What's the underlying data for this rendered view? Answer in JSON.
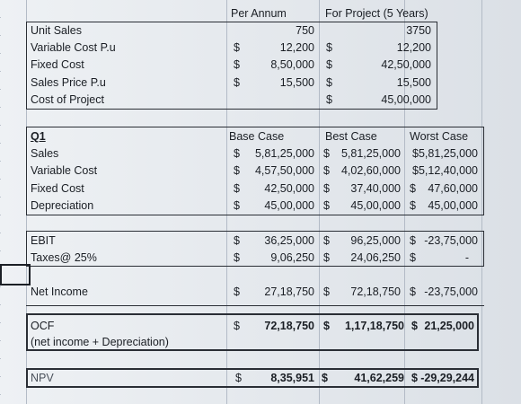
{
  "headers": {
    "per_annum": "Per Annum",
    "for_project": "For Project (5 Years)"
  },
  "top": {
    "rows": [
      {
        "label": "Unit Sales",
        "pa_sym": "",
        "pa_val": "750",
        "fp_sym": "",
        "fp_val": "3750"
      },
      {
        "label": "Variable Cost P.u",
        "pa_sym": "$",
        "pa_val": "12,200",
        "fp_sym": "$",
        "fp_val": "12,200"
      },
      {
        "label": "Fixed Cost",
        "pa_sym": "$",
        "pa_val": "8,50,000",
        "fp_sym": "$",
        "fp_val": "42,50,000"
      },
      {
        "label": "Sales Price P.u",
        "pa_sym": "$",
        "pa_val": "15,500",
        "fp_sym": "$",
        "fp_val": "15,500"
      },
      {
        "label": "Cost of Project",
        "pa_sym": "",
        "pa_val": "",
        "fp_sym": "$",
        "fp_val": "45,00,000"
      }
    ]
  },
  "scenario_headers": {
    "q": "Q1",
    "base": "Base Case",
    "best": "Best Case",
    "worst": "Worst Case"
  },
  "scenario": {
    "rows": [
      {
        "label": "Sales",
        "base": "5,81,25,000",
        "best": "5,81,25,000",
        "worst": "$5,81,25,000"
      },
      {
        "label": "Variable Cost",
        "base": "4,57,50,000",
        "best": "4,02,60,000",
        "worst": "$5,12,40,000"
      },
      {
        "label": "Fixed Cost",
        "base": "42,50,000",
        "best": "37,40,000",
        "worst": "47,60,000"
      },
      {
        "label": "Depreciation",
        "base": "45,00,000",
        "best": "45,00,000",
        "worst": "45,00,000"
      }
    ]
  },
  "ebit": {
    "label": "EBIT",
    "base": "36,25,000",
    "best": "96,25,000",
    "worst": "-23,75,000"
  },
  "taxes": {
    "label": "Taxes@ 25%",
    "base": "9,06,250",
    "best": "24,06,250",
    "worst": "-"
  },
  "net_income": {
    "label": "Net Income",
    "base": "27,18,750",
    "best": "72,18,750",
    "worst": "-23,75,000"
  },
  "ocf": {
    "label": "OCF",
    "sublabel": "(net income + Depreciation)",
    "base": "72,18,750",
    "best": "1,17,18,750",
    "worst": "21,25,000"
  },
  "npv": {
    "label": "NPV",
    "base": "8,35,951",
    "best": "41,62,259",
    "worst": "-29,29,244"
  },
  "currency": "$"
}
